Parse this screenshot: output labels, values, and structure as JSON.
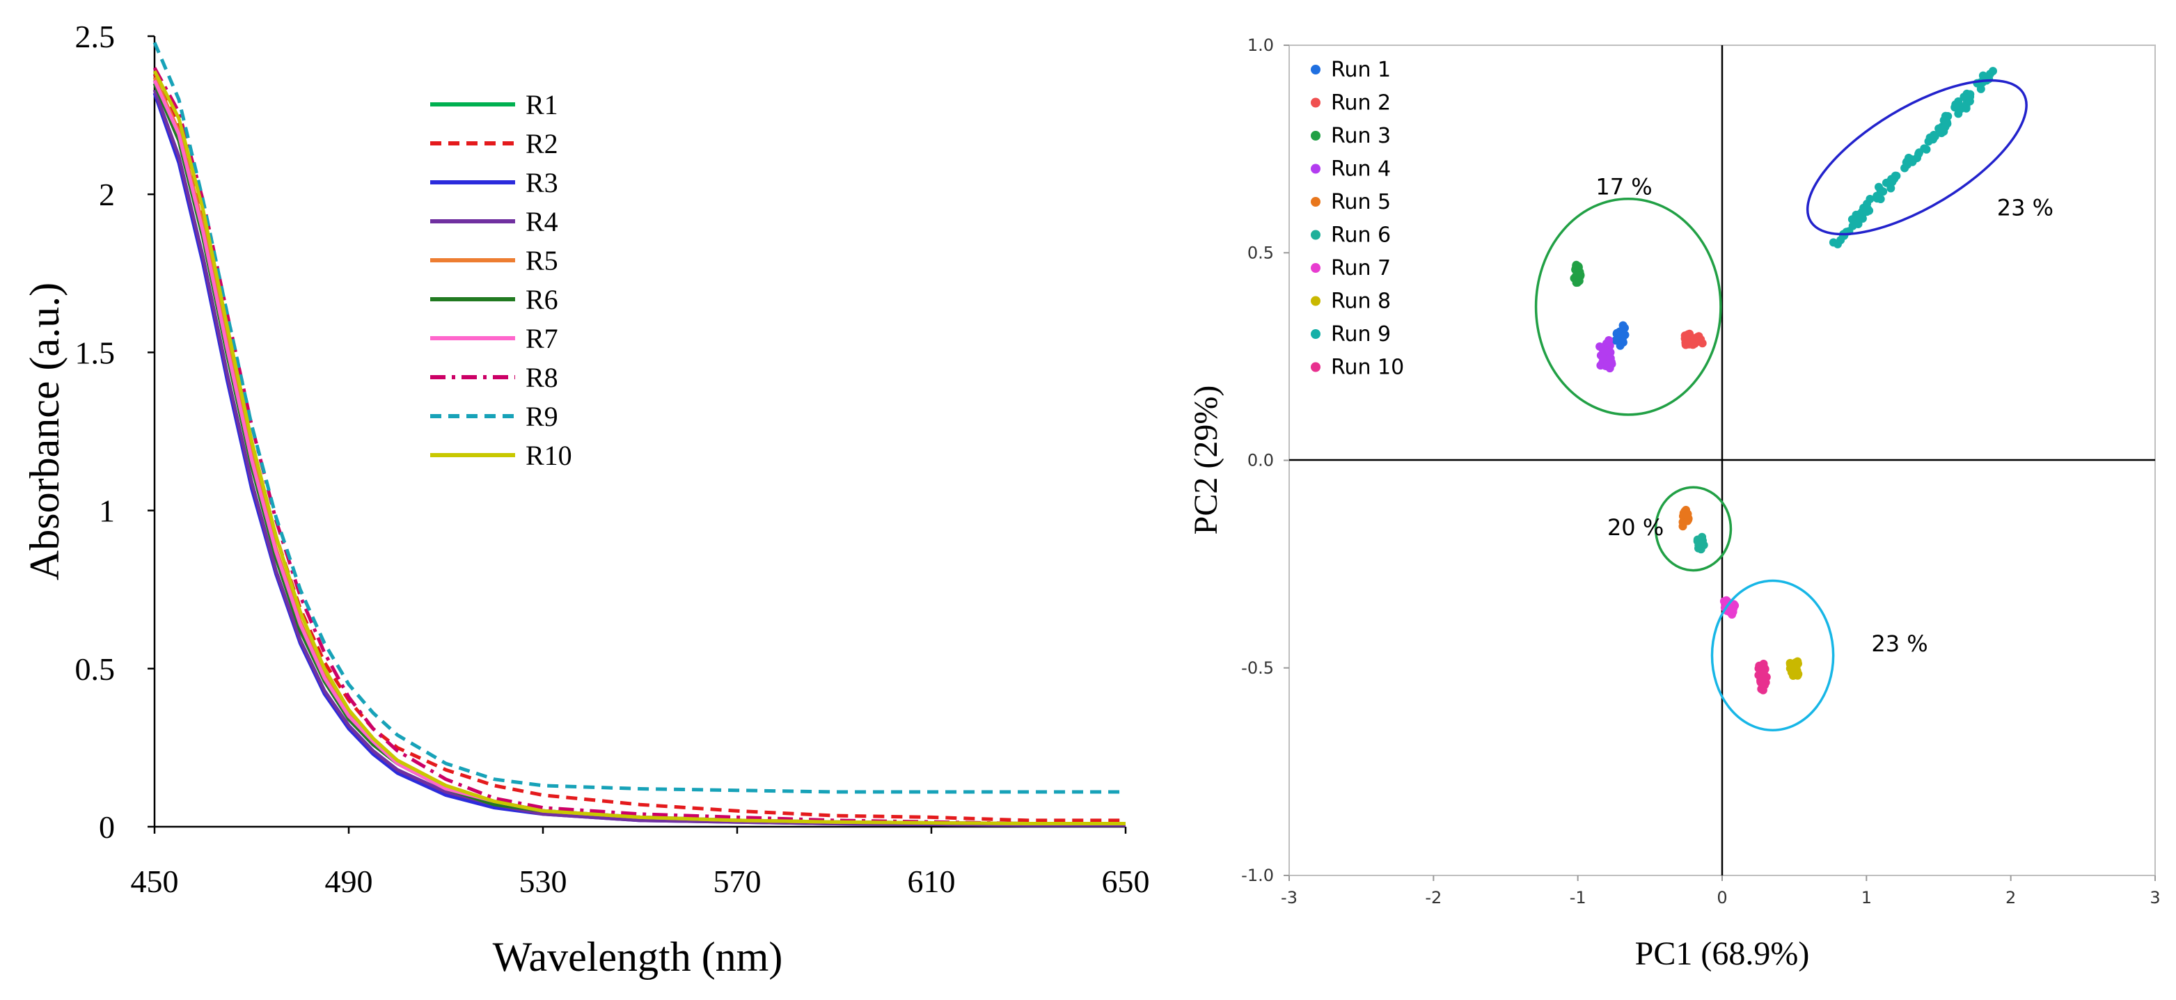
{
  "chart_data": [
    {
      "type": "line",
      "title": "",
      "xlabel": "Wavelength (nm)",
      "ylabel": "Absorbance  (a.u.)",
      "xlim": [
        450,
        650
      ],
      "ylim": [
        0,
        2.5
      ],
      "grid": false,
      "legend_position": "top-right",
      "x_ticks": [
        "450",
        "490",
        "530",
        "570",
        "610",
        "650"
      ],
      "y_ticks": [
        "0",
        "0.5",
        "1",
        "1.5",
        "2",
        "2.5"
      ],
      "x": [
        450,
        455,
        460,
        465,
        470,
        475,
        480,
        485,
        490,
        495,
        500,
        510,
        520,
        530,
        550,
        570,
        590,
        610,
        630,
        650
      ],
      "series": [
        {
          "name": "R1",
          "color": "#00b050",
          "dash": "solid",
          "values": [
            2.36,
            2.18,
            1.87,
            1.5,
            1.15,
            0.86,
            0.63,
            0.46,
            0.34,
            0.26,
            0.2,
            0.12,
            0.08,
            0.05,
            0.03,
            0.02,
            0.015,
            0.012,
            0.01,
            0.01
          ]
        },
        {
          "name": "R2",
          "color": "#e41a1c",
          "dash": "dashed",
          "values": [
            2.38,
            2.22,
            1.92,
            1.56,
            1.21,
            0.92,
            0.69,
            0.52,
            0.4,
            0.31,
            0.25,
            0.18,
            0.13,
            0.1,
            0.07,
            0.05,
            0.035,
            0.03,
            0.02,
            0.02
          ]
        },
        {
          "name": "R3",
          "color": "#2b2bdc",
          "dash": "solid",
          "values": [
            2.32,
            2.1,
            1.78,
            1.41,
            1.07,
            0.8,
            0.58,
            0.42,
            0.31,
            0.23,
            0.17,
            0.1,
            0.06,
            0.04,
            0.02,
            0.015,
            0.01,
            0.008,
            0.005,
            0.005
          ]
        },
        {
          "name": "R4",
          "color": "#7030a0",
          "dash": "solid",
          "values": [
            2.33,
            2.12,
            1.8,
            1.43,
            1.09,
            0.81,
            0.59,
            0.43,
            0.32,
            0.24,
            0.18,
            0.11,
            0.07,
            0.04,
            0.02,
            0.015,
            0.01,
            0.008,
            0.005,
            0.005
          ]
        },
        {
          "name": "R5",
          "color": "#ed7d31",
          "dash": "solid",
          "values": [
            2.37,
            2.2,
            1.9,
            1.53,
            1.18,
            0.88,
            0.65,
            0.48,
            0.36,
            0.27,
            0.21,
            0.13,
            0.08,
            0.05,
            0.03,
            0.02,
            0.015,
            0.012,
            0.01,
            0.01
          ]
        },
        {
          "name": "R6",
          "color": "#217a21",
          "dash": "solid",
          "values": [
            2.35,
            2.17,
            1.86,
            1.49,
            1.14,
            0.85,
            0.62,
            0.46,
            0.34,
            0.26,
            0.2,
            0.12,
            0.07,
            0.05,
            0.03,
            0.02,
            0.015,
            0.012,
            0.01,
            0.01
          ]
        },
        {
          "name": "R7",
          "color": "#ff66cc",
          "dash": "solid",
          "values": [
            2.36,
            2.19,
            1.88,
            1.51,
            1.16,
            0.87,
            0.64,
            0.47,
            0.35,
            0.27,
            0.2,
            0.12,
            0.08,
            0.05,
            0.03,
            0.02,
            0.015,
            0.012,
            0.01,
            0.01
          ]
        },
        {
          "name": "R8",
          "color": "#cc0066",
          "dash": "dashdot",
          "values": [
            2.4,
            2.26,
            1.98,
            1.62,
            1.27,
            0.97,
            0.73,
            0.55,
            0.41,
            0.31,
            0.24,
            0.15,
            0.09,
            0.06,
            0.04,
            0.03,
            0.02,
            0.015,
            0.01,
            0.01
          ]
        },
        {
          "name": "R9",
          "color": "#17a2b8",
          "dash": "dashed",
          "values": [
            2.48,
            2.3,
            1.98,
            1.62,
            1.27,
            0.98,
            0.75,
            0.58,
            0.45,
            0.36,
            0.29,
            0.2,
            0.15,
            0.13,
            0.12,
            0.115,
            0.11,
            0.11,
            0.11,
            0.11
          ]
        },
        {
          "name": "R10",
          "color": "#c8c800",
          "dash": "solid",
          "values": [
            2.39,
            2.24,
            1.95,
            1.58,
            1.22,
            0.92,
            0.68,
            0.5,
            0.37,
            0.28,
            0.21,
            0.13,
            0.08,
            0.05,
            0.03,
            0.02,
            0.015,
            0.012,
            0.01,
            0.01
          ]
        }
      ]
    },
    {
      "type": "scatter",
      "title": "",
      "xlabel": "PC1 (68.9%)",
      "ylabel": "PC2 (29%)",
      "xlim": [
        -3,
        3
      ],
      "ylim": [
        -1.0,
        1.0
      ],
      "grid": false,
      "legend_position": "top-left",
      "x_ticks": [
        "-3",
        "-2",
        "-1",
        "0",
        "1",
        "2",
        "3"
      ],
      "y_ticks": [
        "-1.0",
        "-0.5",
        "0.0",
        "0.5",
        "1.0"
      ],
      "series": [
        {
          "name": "Run 1",
          "color": "#1f6fe0",
          "center": [
            -0.7,
            0.3
          ],
          "spread": [
            0.05,
            0.03
          ],
          "count": 30
        },
        {
          "name": "Run 2",
          "color": "#f05050",
          "center": [
            -0.2,
            0.29
          ],
          "spread": [
            0.08,
            0.02
          ],
          "count": 50
        },
        {
          "name": "Run 3",
          "color": "#21a045",
          "center": [
            -1.0,
            0.45
          ],
          "spread": [
            0.04,
            0.03
          ],
          "count": 30
        },
        {
          "name": "Run 4",
          "color": "#b33cf0",
          "center": [
            -0.8,
            0.25
          ],
          "spread": [
            0.06,
            0.05
          ],
          "count": 40
        },
        {
          "name": "Run 5",
          "color": "#e8761c",
          "center": [
            -0.25,
            -0.14
          ],
          "spread": [
            0.03,
            0.03
          ],
          "count": 25
        },
        {
          "name": "Run 6",
          "color": "#1fb09a",
          "center": [
            -0.15,
            -0.2
          ],
          "spread": [
            0.03,
            0.02
          ],
          "count": 20
        },
        {
          "name": "Run 7",
          "color": "#e83cd0",
          "center": [
            0.05,
            -0.35
          ],
          "spread": [
            0.05,
            0.03
          ],
          "count": 35
        },
        {
          "name": "Run 8",
          "color": "#c9b800",
          "center": [
            0.5,
            -0.5
          ],
          "spread": [
            0.04,
            0.03
          ],
          "count": 35
        },
        {
          "name": "Run 9",
          "color": "#16b0a8",
          "center": [
            1.35,
            0.73
          ],
          "spread": [
            0.0,
            0.0
          ],
          "count": 110,
          "from": [
            0.78,
            0.52
          ],
          "to": [
            1.88,
            0.94
          ]
        },
        {
          "name": "Run 10",
          "color": "#e8308f",
          "center": [
            0.28,
            -0.52
          ],
          "spread": [
            0.04,
            0.04
          ],
          "count": 45
        }
      ],
      "annotations": [
        {
          "text": "17 %",
          "x": -0.68,
          "y": 0.64
        },
        {
          "text": "23 %",
          "x": 2.1,
          "y": 0.59
        },
        {
          "text": "20 %",
          "x": -0.6,
          "y": -0.18
        },
        {
          "text": "23 %",
          "x": 1.23,
          "y": -0.46
        }
      ],
      "ellipses": [
        {
          "cx": -0.65,
          "cy": 0.37,
          "rx": 0.64,
          "ry": 0.26,
          "angle": 0,
          "color": "#21a045"
        },
        {
          "cx": 1.35,
          "cy": 0.73,
          "rx": 0.86,
          "ry": 0.12,
          "angle": 31,
          "color": "#2222cc"
        },
        {
          "cx": -0.2,
          "cy": -0.165,
          "rx": 0.26,
          "ry": 0.1,
          "angle": 0,
          "color": "#21a045"
        },
        {
          "cx": 0.35,
          "cy": -0.47,
          "rx": 0.42,
          "ry": 0.18,
          "angle": 0,
          "color": "#17b6e6"
        }
      ]
    }
  ]
}
